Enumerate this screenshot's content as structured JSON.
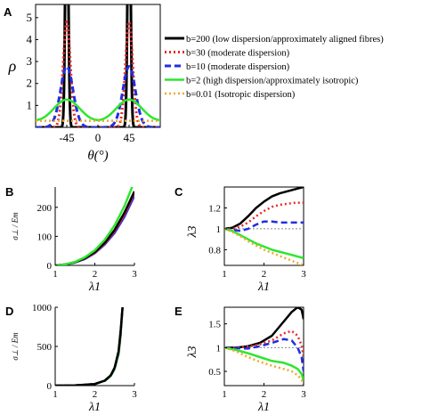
{
  "figure": {
    "letters": [
      "A",
      "B",
      "C",
      "D",
      "E"
    ]
  },
  "chart_data": [
    {
      "id": "A",
      "type": "line",
      "xlabel": "θ(°)",
      "ylabel": "ρ",
      "xlim": [
        -90,
        90
      ],
      "ylim": [
        0,
        5.6
      ],
      "xticks": [
        "-45",
        "0",
        "45"
      ],
      "yticks": [
        "1",
        "2",
        "3",
        "4",
        "5"
      ],
      "grid": false,
      "legend_position": "right",
      "series": [
        {
          "name": "b=200 (low dispersion/approximately aligned fibres)",
          "b": 200,
          "color": "#000000",
          "dash": "",
          "width": 3
        },
        {
          "name": "b=30 (moderate dispersion)",
          "b": 30,
          "color": "#e8292a",
          "dash": "2,3",
          "width": 3
        },
        {
          "name": "b=10 (moderate dispersion)",
          "b": 10,
          "color": "#1f2fe0",
          "dash": "7,4",
          "width": 3
        },
        {
          "name": "b=2 (high dispersion/approximately isotropic)",
          "b": 2,
          "color": "#2ee62e",
          "dash": "",
          "width": 2.5
        },
        {
          "name": "b=0.01 (Isotropic dispersion)",
          "b": 0.01,
          "color": "#f0a830",
          "dash": "2,3",
          "width": 2.5
        }
      ]
    },
    {
      "id": "B",
      "type": "line",
      "xlabel": "λ1",
      "ylabel": "σ⊥ / Em",
      "xlim": [
        1,
        3
      ],
      "ylim": [
        0,
        270
      ],
      "xticks": [
        "1",
        "2",
        "3"
      ],
      "yticks": [
        "0",
        "100",
        "200"
      ],
      "series": [
        {
          "color": "#1f2fe0",
          "x": [
            1,
            1.25,
            1.5,
            1.75,
            2,
            2.25,
            2.5,
            2.75,
            3
          ],
          "y": [
            0,
            3,
            10,
            22,
            42,
            72,
            112,
            168,
            240
          ]
        },
        {
          "color": "#e8292a",
          "x": [
            1,
            1.25,
            1.5,
            1.75,
            2,
            2.25,
            2.5,
            2.75,
            3
          ],
          "y": [
            0,
            3,
            11,
            24,
            44,
            75,
            118,
            176,
            250
          ]
        },
        {
          "color": "#000000",
          "x": [
            1,
            1.25,
            1.5,
            1.75,
            2,
            2.25,
            2.5,
            2.75,
            3
          ],
          "y": [
            0,
            3,
            11,
            25,
            46,
            78,
            122,
            182,
            255
          ]
        },
        {
          "color": "#2ee62e",
          "x": [
            1,
            1.25,
            1.5,
            1.75,
            2,
            2.25,
            2.5,
            2.75,
            3
          ],
          "y": [
            0,
            3,
            12,
            28,
            52,
            88,
            138,
            205,
            290
          ]
        }
      ]
    },
    {
      "id": "C",
      "type": "line",
      "xlabel": "λ1",
      "ylabel": "λ3",
      "xlim": [
        1,
        3
      ],
      "ylim": [
        0.65,
        1.4
      ],
      "xticks": [
        "1",
        "2",
        "3"
      ],
      "yticks": [
        "0.8",
        "1",
        "1.2"
      ],
      "series": [
        {
          "color": "#888888",
          "dash": "2,2",
          "width": 1,
          "x": [
            1,
            3
          ],
          "y": [
            1,
            1
          ]
        },
        {
          "color": "#000000",
          "x": [
            1,
            1.2,
            1.4,
            1.6,
            1.8,
            2,
            2.2,
            2.4,
            2.6,
            2.8,
            3
          ],
          "y": [
            1,
            1.01,
            1.05,
            1.12,
            1.2,
            1.26,
            1.31,
            1.34,
            1.36,
            1.38,
            1.4
          ]
        },
        {
          "color": "#e8292a",
          "dash": "2,3",
          "x": [
            1,
            1.2,
            1.4,
            1.6,
            1.8,
            2,
            2.2,
            2.4,
            2.6,
            2.8,
            3
          ],
          "y": [
            1,
            1.0,
            1.02,
            1.06,
            1.12,
            1.17,
            1.21,
            1.23,
            1.24,
            1.25,
            1.25
          ]
        },
        {
          "color": "#1f2fe0",
          "dash": "7,4",
          "x": [
            1,
            1.2,
            1.4,
            1.6,
            1.8,
            2,
            2.2,
            2.4,
            2.6,
            2.8,
            3
          ],
          "y": [
            1,
            0.99,
            0.98,
            1.0,
            1.04,
            1.07,
            1.07,
            1.06,
            1.06,
            1.06,
            1.06
          ]
        },
        {
          "color": "#2ee62e",
          "x": [
            1,
            1.2,
            1.4,
            1.6,
            1.8,
            2,
            2.2,
            2.4,
            2.6,
            2.8,
            3
          ],
          "y": [
            1,
            0.98,
            0.94,
            0.9,
            0.86,
            0.83,
            0.8,
            0.78,
            0.76,
            0.74,
            0.72
          ]
        },
        {
          "color": "#f0a830",
          "dash": "2,3",
          "x": [
            1,
            1.2,
            1.4,
            1.6,
            1.8,
            2,
            2.2,
            2.4,
            2.6,
            2.8,
            3
          ],
          "y": [
            1,
            0.97,
            0.93,
            0.88,
            0.84,
            0.8,
            0.77,
            0.74,
            0.71,
            0.68,
            0.65
          ]
        }
      ]
    },
    {
      "id": "D",
      "type": "line",
      "xlabel": "λ1",
      "ylabel": "σ⊥ / Em",
      "xlim": [
        1,
        3
      ],
      "ylim": [
        0,
        1000
      ],
      "xticks": [
        "1",
        "2",
        "3"
      ],
      "yticks": [
        "0",
        "500",
        "1000"
      ],
      "series": [
        {
          "color": "#2ee62e",
          "x": [
            1,
            1.5,
            2,
            2.25,
            2.4,
            2.5,
            2.6,
            2.65,
            2.7
          ],
          "y": [
            0,
            3,
            20,
            60,
            120,
            210,
            400,
            620,
            1000
          ]
        },
        {
          "color": "#1f2fe0",
          "dash": "7,4",
          "x": [
            1,
            1.5,
            2,
            2.25,
            2.4,
            2.5,
            2.6,
            2.65,
            2.7
          ],
          "y": [
            0,
            3,
            20,
            62,
            125,
            220,
            420,
            650,
            1000
          ]
        },
        {
          "color": "#e8292a",
          "dash": "2,3",
          "x": [
            1,
            1.5,
            2,
            2.25,
            2.4,
            2.5,
            2.6,
            2.65,
            2.7
          ],
          "y": [
            0,
            3,
            20,
            63,
            128,
            225,
            430,
            670,
            1000
          ]
        },
        {
          "color": "#000000",
          "x": [
            1,
            1.5,
            2,
            2.25,
            2.4,
            2.5,
            2.6,
            2.65,
            2.7
          ],
          "y": [
            0,
            3,
            20,
            64,
            130,
            230,
            440,
            690,
            1000
          ]
        }
      ]
    },
    {
      "id": "E",
      "type": "line",
      "xlabel": "λ1",
      "ylabel": "λ3",
      "xlim": [
        1,
        3
      ],
      "ylim": [
        0.2,
        1.85
      ],
      "xticks": [
        "1",
        "2",
        "3"
      ],
      "yticks": [
        "0.5",
        "1",
        "1.5"
      ],
      "series": [
        {
          "color": "#888888",
          "dash": "2,2",
          "width": 1,
          "x": [
            1,
            3
          ],
          "y": [
            1,
            1
          ]
        },
        {
          "color": "#000000",
          "x": [
            1,
            1.3,
            1.6,
            1.9,
            2.2,
            2.5,
            2.7,
            2.85,
            2.95,
            3
          ],
          "y": [
            1,
            1.0,
            1.03,
            1.1,
            1.25,
            1.55,
            1.75,
            1.85,
            1.8,
            1.6
          ]
        },
        {
          "color": "#e8292a",
          "dash": "2,3",
          "x": [
            1,
            1.3,
            1.6,
            1.9,
            2.2,
            2.5,
            2.7,
            2.85,
            2.95,
            3
          ],
          "y": [
            1,
            1.0,
            1.02,
            1.07,
            1.15,
            1.3,
            1.35,
            1.25,
            1.05,
            0.8
          ]
        },
        {
          "color": "#1f2fe0",
          "dash": "7,4",
          "x": [
            1,
            1.3,
            1.6,
            1.9,
            2.2,
            2.5,
            2.7,
            2.85,
            2.95,
            3
          ],
          "y": [
            1,
            0.99,
            0.98,
            1.03,
            1.1,
            1.18,
            1.15,
            1.0,
            0.8,
            0.5
          ]
        },
        {
          "color": "#2ee62e",
          "x": [
            1,
            1.3,
            1.6,
            1.9,
            2.2,
            2.5,
            2.7,
            2.85,
            2.95,
            3
          ],
          "y": [
            1,
            0.95,
            0.88,
            0.8,
            0.72,
            0.68,
            0.62,
            0.55,
            0.45,
            0.3
          ]
        },
        {
          "color": "#f0a830",
          "dash": "2,3",
          "x": [
            1,
            1.3,
            1.6,
            1.9,
            2.2,
            2.5,
            2.7,
            2.85,
            2.95,
            3
          ],
          "y": [
            1,
            0.92,
            0.8,
            0.7,
            0.62,
            0.55,
            0.5,
            0.42,
            0.32,
            0.22
          ]
        }
      ]
    }
  ]
}
